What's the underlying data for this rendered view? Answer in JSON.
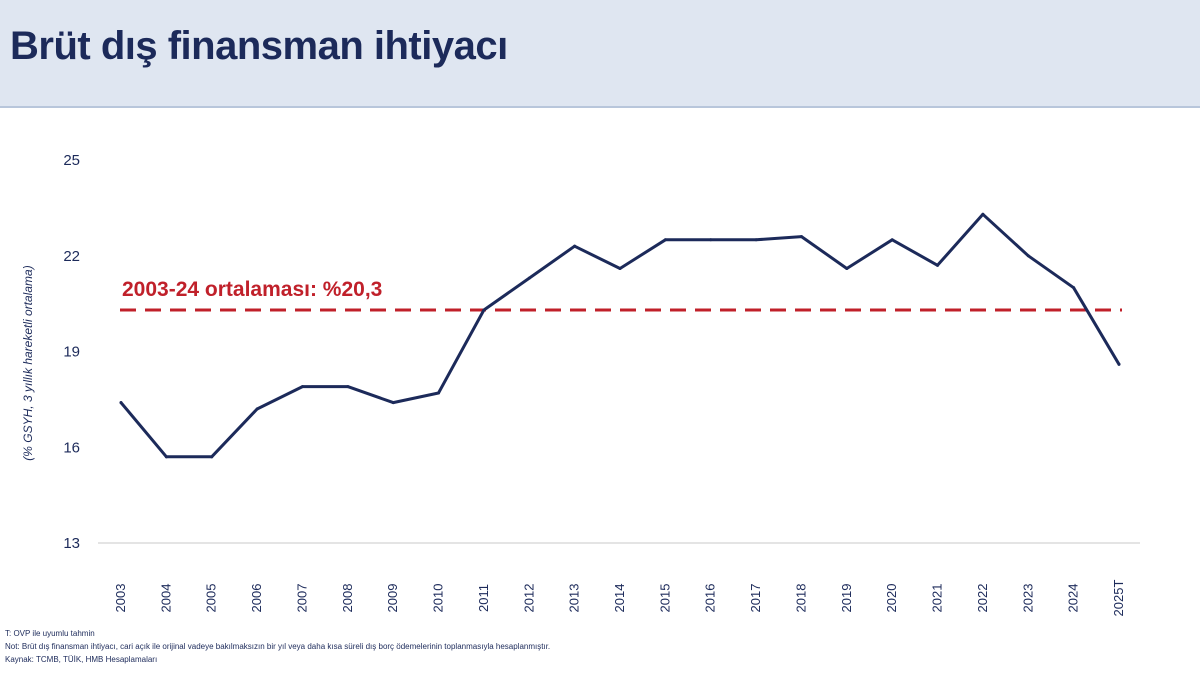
{
  "header": {
    "title": "Brüt dış finansman ihtiyacı"
  },
  "colors": {
    "line": "#1c2a5a",
    "average": "#c0202a",
    "axis_text": "#1c2a5a",
    "header_bg": "#dfe6f1"
  },
  "chart_data": {
    "type": "line",
    "title": "Brüt dış finansman ihtiyacı",
    "ylabel": "(% GSYH, 3 yıllık hareketli ortalama)",
    "xlabel": "",
    "ylim": [
      13,
      25
    ],
    "yticks": [
      "25",
      "22",
      "19",
      "16",
      "13"
    ],
    "ytick_values": [
      25,
      22,
      19,
      16,
      13
    ],
    "categories": [
      "2003",
      "2004",
      "2005",
      "2006",
      "2007",
      "2008",
      "2009",
      "2010",
      "2011",
      "2012",
      "2013",
      "2014",
      "2015",
      "2016",
      "2017",
      "2018",
      "2019",
      "2020",
      "2021",
      "2022",
      "2023",
      "2024",
      "2025T"
    ],
    "series": [
      {
        "values": [
          17.4,
          15.7,
          15.7,
          17.2,
          17.9,
          17.9,
          17.4,
          17.7,
          20.3,
          21.3,
          22.3,
          21.6,
          22.5,
          22.5,
          22.5,
          22.6,
          21.6,
          22.5,
          21.7,
          23.3,
          22.0,
          21.0,
          18.6
        ]
      }
    ],
    "average": {
      "label": "2003-24 ortalaması: %20,3",
      "value": 20.3
    },
    "grid": false
  },
  "footnotes": {
    "line1": "T: OVP ile uyumlu tahmin",
    "line2": "Not: Brüt dış finansman ihtiyacı, cari açık ile orijinal vadeye bakılmaksızın bir yıl veya daha kısa süreli dış borç ödemelerinin toplanmasıyla hesaplanmıştır.",
    "line3": "Kaynak: TCMB, TÜİK, HMB Hesaplamaları"
  }
}
